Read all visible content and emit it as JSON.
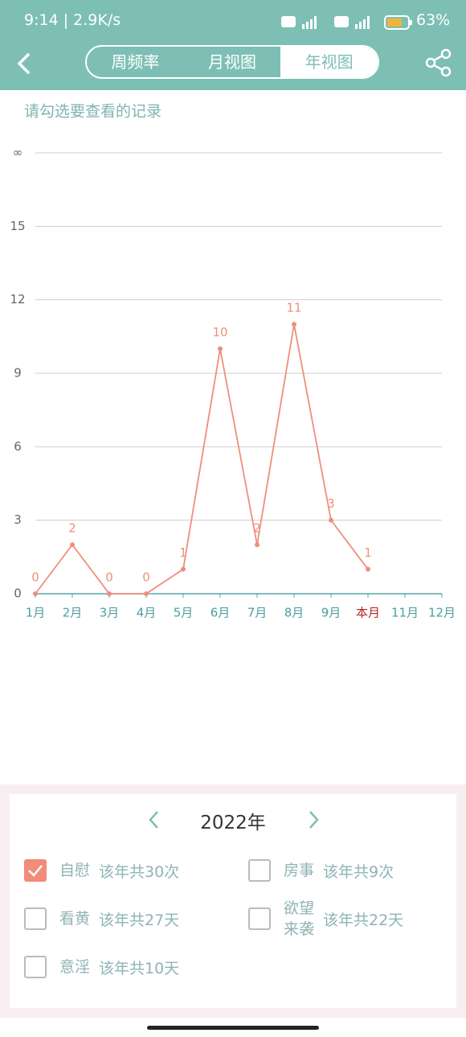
{
  "status_bar": {
    "time": "9:14 | 2.9K/s",
    "battery": "63%"
  },
  "nav": {
    "tabs": [
      "周频率",
      "月视图",
      "年视图"
    ],
    "active": 2
  },
  "chart_data": {
    "type": "line",
    "subtitle": "请勾选要查看的记录",
    "categories": [
      "1月",
      "2月",
      "3月",
      "4月",
      "5月",
      "6月",
      "7月",
      "8月",
      "9月",
      "本月",
      "11月",
      "12月"
    ],
    "highlight_category_index": 9,
    "highlight_color": "#b0282a",
    "series": [
      {
        "name": "自慰",
        "color": "#ee8f7c",
        "values": [
          0,
          2,
          0,
          0,
          1,
          10,
          2,
          11,
          3,
          1,
          null,
          null
        ]
      }
    ],
    "ylim": [
      0,
      18
    ],
    "yticks": [
      0,
      3,
      6,
      9,
      12,
      15,
      {
        "value": 18,
        "label": "∞"
      }
    ],
    "grid": true
  },
  "panel": {
    "year": "2022年",
    "options": [
      {
        "name": "自慰",
        "summary": "该年共30次",
        "checked": true
      },
      {
        "name": "房事",
        "summary": "该年共9次",
        "checked": false
      },
      {
        "name": "看黄",
        "summary": "该年共27天",
        "checked": false
      },
      {
        "name": "欲望来袭",
        "summary": "该年共22天",
        "checked": false
      },
      {
        "name": "意淫",
        "summary": "该年共10天",
        "checked": false
      }
    ]
  }
}
